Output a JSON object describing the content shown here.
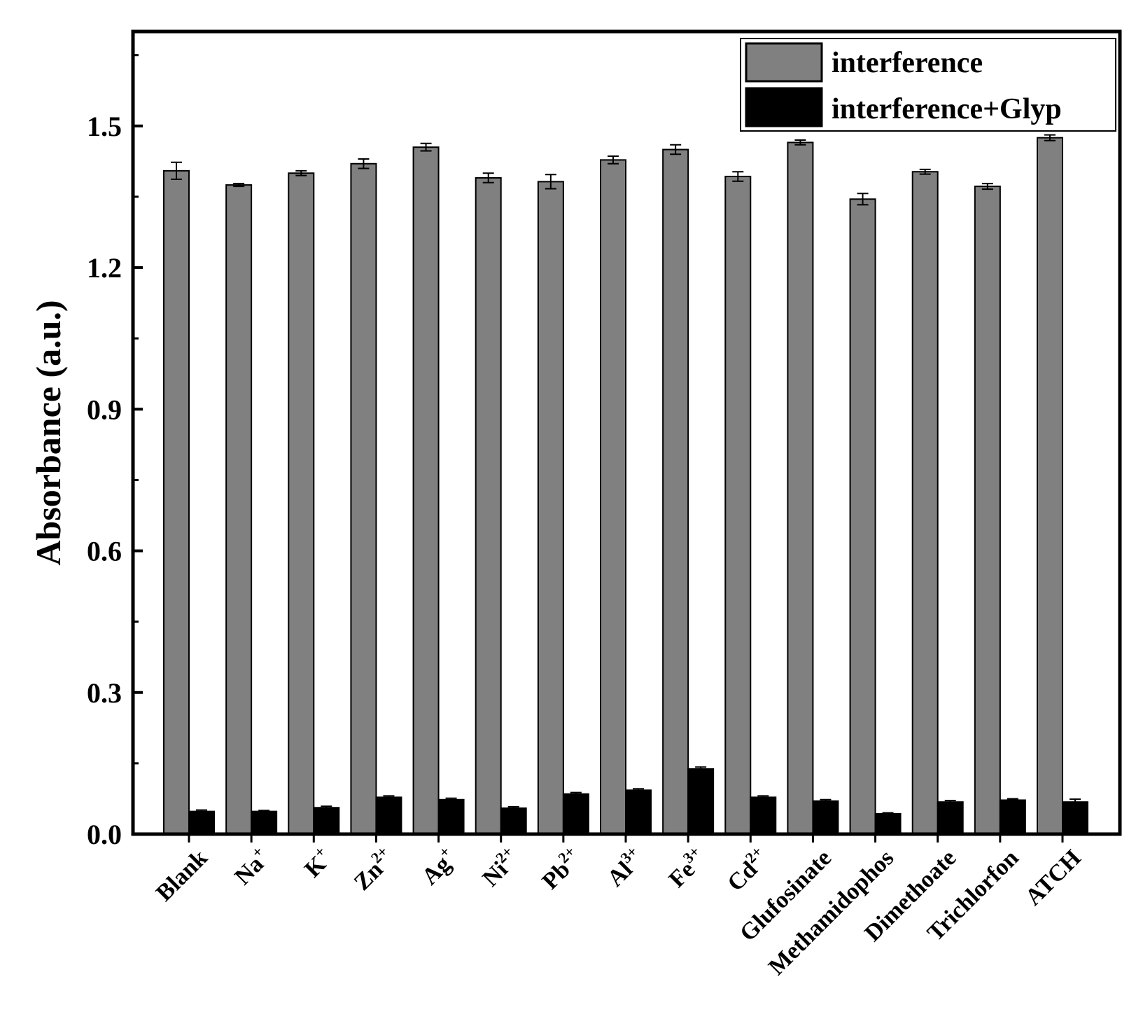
{
  "chart_data": {
    "type": "bar",
    "ylabel": "Absorbance (a.u.)",
    "xlabel": "",
    "ylim": [
      0,
      1.7
    ],
    "yticks": [
      "0.0",
      "0.3",
      "0.6",
      "0.9",
      "1.2",
      "1.5"
    ],
    "legend_position": "top-right",
    "grid": false,
    "categories": [
      {
        "base": "Blank",
        "sup": ""
      },
      {
        "base": "Na",
        "sup": "+"
      },
      {
        "base": "K",
        "sup": "+"
      },
      {
        "base": "Zn",
        "sup": "2+"
      },
      {
        "base": "Ag",
        "sup": "+"
      },
      {
        "base": "Ni",
        "sup": "2+"
      },
      {
        "base": "Pb",
        "sup": "2+"
      },
      {
        "base": "Al",
        "sup": "3+"
      },
      {
        "base": "Fe",
        "sup": "3+"
      },
      {
        "base": "Cd",
        "sup": "2+"
      },
      {
        "base": "Glufosinate",
        "sup": ""
      },
      {
        "base": "Methamidophos",
        "sup": ""
      },
      {
        "base": "Dimethoate",
        "sup": ""
      },
      {
        "base": "Trichlorfon",
        "sup": ""
      },
      {
        "base": "ATCH",
        "sup": ""
      }
    ],
    "series": [
      {
        "name": "interference",
        "color": "#808080",
        "values": [
          1.405,
          1.375,
          1.4,
          1.42,
          1.455,
          1.39,
          1.382,
          1.428,
          1.45,
          1.393,
          1.465,
          1.345,
          1.403,
          1.372,
          1.475
        ],
        "errors": [
          0.018,
          0.003,
          0.005,
          0.01,
          0.008,
          0.01,
          0.015,
          0.008,
          0.01,
          0.01,
          0.005,
          0.012,
          0.005,
          0.006,
          0.006
        ]
      },
      {
        "name": "interference+Glyp",
        "color": "#000000",
        "values": [
          0.048,
          0.048,
          0.056,
          0.078,
          0.073,
          0.055,
          0.085,
          0.093,
          0.138,
          0.078,
          0.07,
          0.043,
          0.068,
          0.072,
          0.068
        ],
        "errors": [
          0.003,
          0.002,
          0.003,
          0.003,
          0.003,
          0.003,
          0.003,
          0.003,
          0.004,
          0.003,
          0.003,
          0.002,
          0.003,
          0.003,
          0.006
        ]
      }
    ]
  }
}
